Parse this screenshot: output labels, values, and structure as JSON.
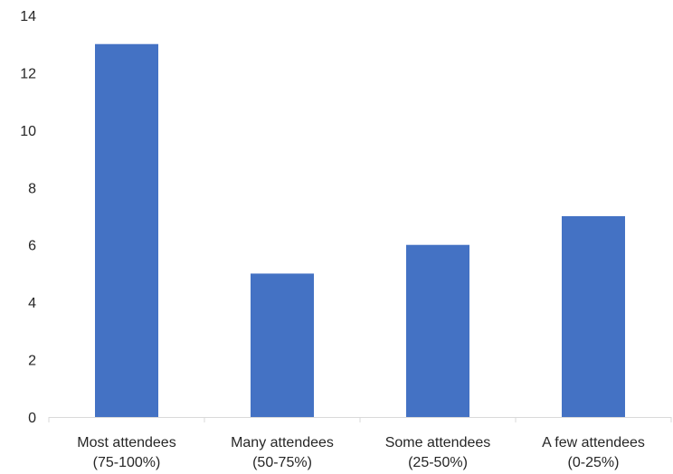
{
  "chart_data": {
    "type": "bar",
    "categories": [
      [
        "Most attendees",
        "(75-100%)"
      ],
      [
        "Many attendees",
        "(50-75%)"
      ],
      [
        "Some attendees",
        "(25-50%)"
      ],
      [
        "A few attendees",
        "(0-25%)"
      ]
    ],
    "values": [
      13,
      5,
      6,
      7
    ],
    "yticks": [
      "0",
      "2",
      "4",
      "6",
      "8",
      "10",
      "12",
      "14"
    ],
    "ylim": [
      0,
      14
    ],
    "bar_color": "#4472C4",
    "axis_color": "#D9D9D9",
    "grid": false,
    "legend": "none"
  }
}
